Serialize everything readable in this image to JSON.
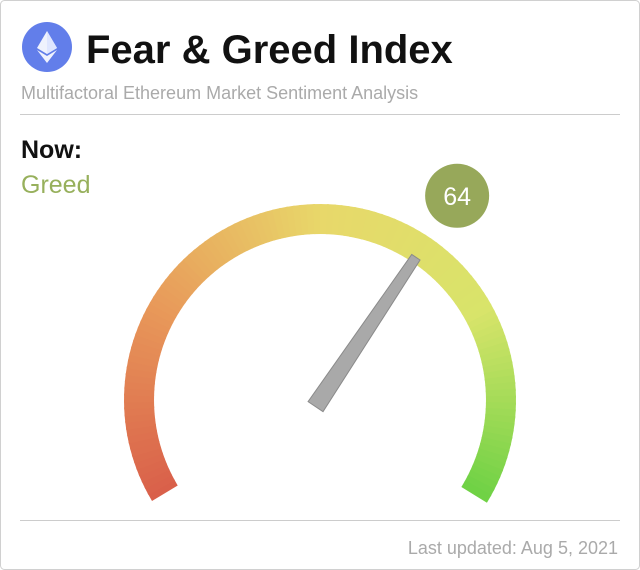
{
  "chart_data": {
    "type": "gauge",
    "title": "Fear & Greed Index",
    "subtitle": "Multifactoral Ethereum Market Sentiment Analysis",
    "now_label": "Now:",
    "classification": "Greed",
    "classification_color": "#97b05c",
    "value": 64,
    "value_color": "#97a85a",
    "needle_color": "#a9a9a9",
    "ylim": [
      0,
      100
    ],
    "gradient": [
      "#d9604a",
      "#e89a5a",
      "#e8d86a",
      "#d8e46a",
      "#6cd144"
    ],
    "footer": "Last updated: Aug 5, 2021"
  }
}
